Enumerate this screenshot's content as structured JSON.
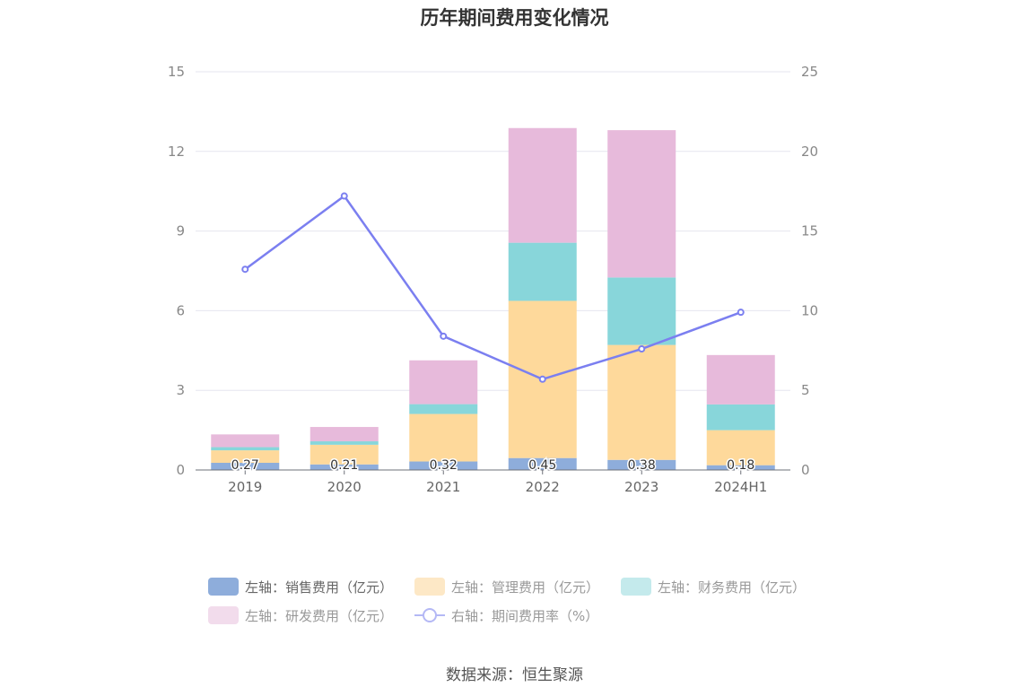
{
  "title": "历年期间费用变化情况",
  "source": "数据来源：恒生聚源",
  "colors": {
    "sales": "#8eaddb",
    "admin": "#fed99b",
    "finance": "#88d6da",
    "rd": "#e7badb",
    "rate": "#7b7ff0",
    "grid": "#e6e6ef",
    "axis": "#6e7079"
  },
  "legend": [
    {
      "label": "左轴：销售费用（亿元）",
      "color": "#8eaddb",
      "type": "box"
    },
    {
      "label": "左轴：管理费用（亿元）",
      "color": "#fde8c6",
      "type": "box"
    },
    {
      "label": "左轴：财务费用（亿元）",
      "color": "#c4eaec",
      "type": "box"
    },
    {
      "label": "左轴：研发费用（亿元）",
      "color": "#f2dcec",
      "type": "box"
    },
    {
      "label": "右轴：期间费用率（%）",
      "color": "#b4b8f5",
      "type": "line"
    }
  ],
  "chart_data": {
    "type": "bar",
    "stacked": true,
    "title": "历年期间费用变化情况",
    "categories": [
      "2019",
      "2020",
      "2021",
      "2022",
      "2023",
      "2024H1"
    ],
    "y_left": {
      "ticks": [
        0,
        3,
        6,
        9,
        12,
        15
      ],
      "ylim": [
        0,
        15
      ]
    },
    "y_right": {
      "ticks": [
        0,
        5,
        10,
        15,
        20,
        25
      ],
      "ylim": [
        0,
        25
      ]
    },
    "series": [
      {
        "name": "左轴：销售费用（亿元）",
        "axis": "left",
        "values": [
          0.27,
          0.21,
          0.32,
          0.45,
          0.38,
          0.18
        ],
        "labels": [
          "0.27",
          "0.21",
          "0.32",
          "0.45",
          "0.38",
          "0.18"
        ]
      },
      {
        "name": "左轴：管理费用（亿元）",
        "axis": "left",
        "values": [
          0.47,
          0.74,
          1.79,
          5.92,
          4.33,
          1.32
        ]
      },
      {
        "name": "左轴：财务费用（亿元）",
        "axis": "left",
        "values": [
          0.12,
          0.13,
          0.37,
          2.19,
          2.54,
          0.97
        ]
      },
      {
        "name": "左轴：研发费用（亿元）",
        "axis": "left",
        "values": [
          0.48,
          0.54,
          1.65,
          4.32,
          5.55,
          1.86
        ]
      },
      {
        "name": "右轴：期间费用率（%）",
        "axis": "right",
        "type": "line",
        "values": [
          12.6,
          17.2,
          8.4,
          5.7,
          7.6,
          9.9
        ]
      }
    ],
    "grid": true,
    "legend_position": "bottom"
  }
}
